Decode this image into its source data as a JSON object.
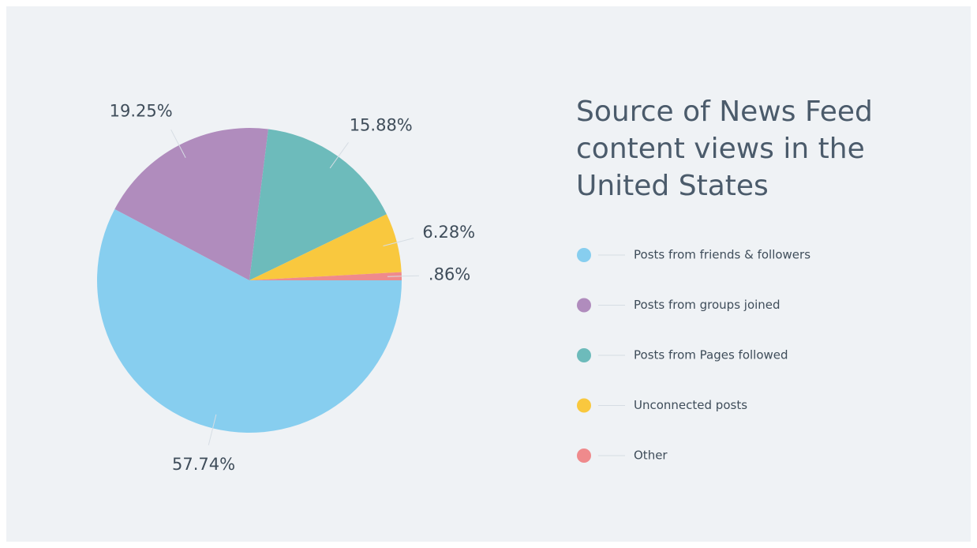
{
  "chart_data": {
    "type": "pie",
    "title": "Source of News Feed content views in the United States",
    "categories": [
      "Posts from friends & followers",
      "Posts from groups joined",
      "Posts from Pages followed",
      "Unconnected posts",
      "Other"
    ],
    "values": [
      57.74,
      19.25,
      15.88,
      6.28,
      0.86
    ],
    "value_labels": [
      "57.74%",
      "19.25%",
      "15.88%",
      "6.28%",
      ".86%"
    ],
    "colors": [
      "#87ceef",
      "#b08cbd",
      "#6dbbbb",
      "#f9c83e",
      "#ef8a8c"
    ],
    "legend": "right"
  }
}
